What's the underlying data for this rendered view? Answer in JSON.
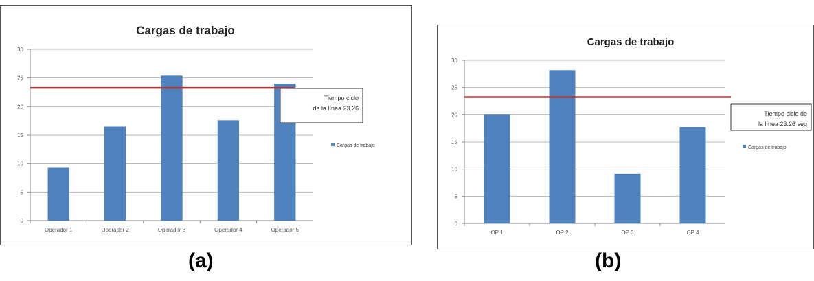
{
  "panel_captions": [
    "(a)",
    "(b)"
  ],
  "chart_data": [
    {
      "type": "bar",
      "title": "Cargas de trabajo",
      "categories": [
        "Operador 1",
        "Operador 2",
        "Operador 3",
        "Operador 4",
        "Operador 5"
      ],
      "series": [
        {
          "name": "Cargas de trabajo",
          "values": [
            9.3,
            16.5,
            25.4,
            17.6,
            24.0
          ]
        }
      ],
      "ylim": [
        0,
        30
      ],
      "yticks": [
        0,
        5,
        10,
        15,
        20,
        25,
        30
      ],
      "reference_line": {
        "value": 23.26,
        "label_lines": [
          "Tiempo ciclo",
          "de la línea 23.26"
        ]
      },
      "grid": true,
      "legend_position": "right",
      "colors": {
        "bar": "#4f81bd",
        "reference": "#a83a3a"
      }
    },
    {
      "type": "bar",
      "title": "Cargas de trabajo",
      "categories": [
        "OP 1",
        "OP 2",
        "OP 3",
        "OP 4"
      ],
      "series": [
        {
          "name": "Cargas de trabajo",
          "values": [
            20.0,
            28.2,
            9.1,
            17.7
          ]
        }
      ],
      "ylim": [
        0,
        30
      ],
      "yticks": [
        0,
        5,
        10,
        15,
        20,
        25,
        30
      ],
      "reference_line": {
        "value": 23.26,
        "label_lines": [
          "Tiempo ciclo de",
          "la línea 23.26 seg"
        ]
      },
      "grid": true,
      "legend_position": "right",
      "colors": {
        "bar": "#4f81bd",
        "reference": "#a83a3a"
      }
    }
  ]
}
